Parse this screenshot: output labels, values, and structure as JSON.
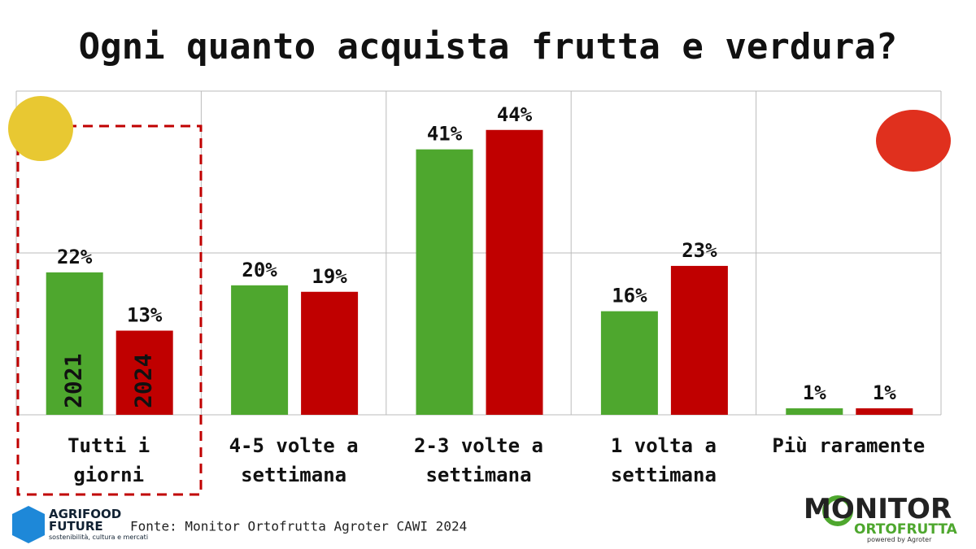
{
  "chart_data": {
    "type": "bar",
    "title": "Ogni quanto acquista frutta e verdura?",
    "categories": [
      "Tutti i giorni",
      "4-5 volte a settimana",
      "2-3 volte a settimana",
      "1 volta a settimana",
      "Più raramente"
    ],
    "series": [
      {
        "name": "2021",
        "color": "#4ea72e",
        "values": [
          22,
          20,
          41,
          16,
          1
        ],
        "value_labels": [
          "22%",
          "20%",
          "41%",
          "16%",
          "1%"
        ]
      },
      {
        "name": "2024",
        "color": "#c00000",
        "values": [
          13,
          19,
          44,
          23,
          1
        ],
        "value_labels": [
          "13%",
          "19%",
          "44%",
          "23%",
          "1%"
        ]
      }
    ],
    "ylim": [
      0,
      50
    ],
    "grid": true,
    "source": "Fonte: Monitor Ortofrutta Agroter CAWI 2024"
  },
  "logos": {
    "left": {
      "line1": "AGRIFOOD",
      "line2": "FUTURE",
      "tagline": "sostenibilità, cultura e mercati"
    },
    "right": {
      "line1": "MONITOR",
      "line2": "ORTOFRUTTA",
      "tagline": "powered by Agroter"
    }
  }
}
